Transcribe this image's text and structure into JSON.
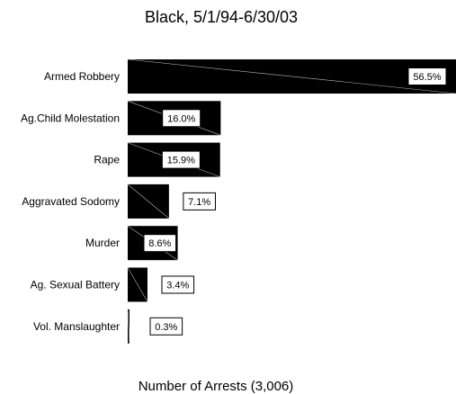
{
  "chart_data": {
    "type": "bar",
    "orientation": "horizontal",
    "title": "Black, 5/1/94-6/30/03",
    "xlabel": "Number of Arrests (3,006)",
    "ylabel": "",
    "categories": [
      "Armed Robbery",
      "Ag.Child Molestation",
      "Rape",
      "Aggravated Sodomy",
      "Murder",
      "Ag. Sexual Battery",
      "Vol. Manslaughter"
    ],
    "values": [
      56.5,
      16.0,
      15.9,
      7.1,
      8.6,
      3.4,
      0.3
    ],
    "data_labels": [
      "56.5%",
      "16.0%",
      "15.9%",
      "7.1%",
      "8.6%",
      "3.4%",
      "0.3%"
    ],
    "unit": "%",
    "xlim": [
      0,
      56.5
    ],
    "grid": false,
    "legend": "none",
    "bar_color": "#000000",
    "background_color": "#ffffff"
  }
}
